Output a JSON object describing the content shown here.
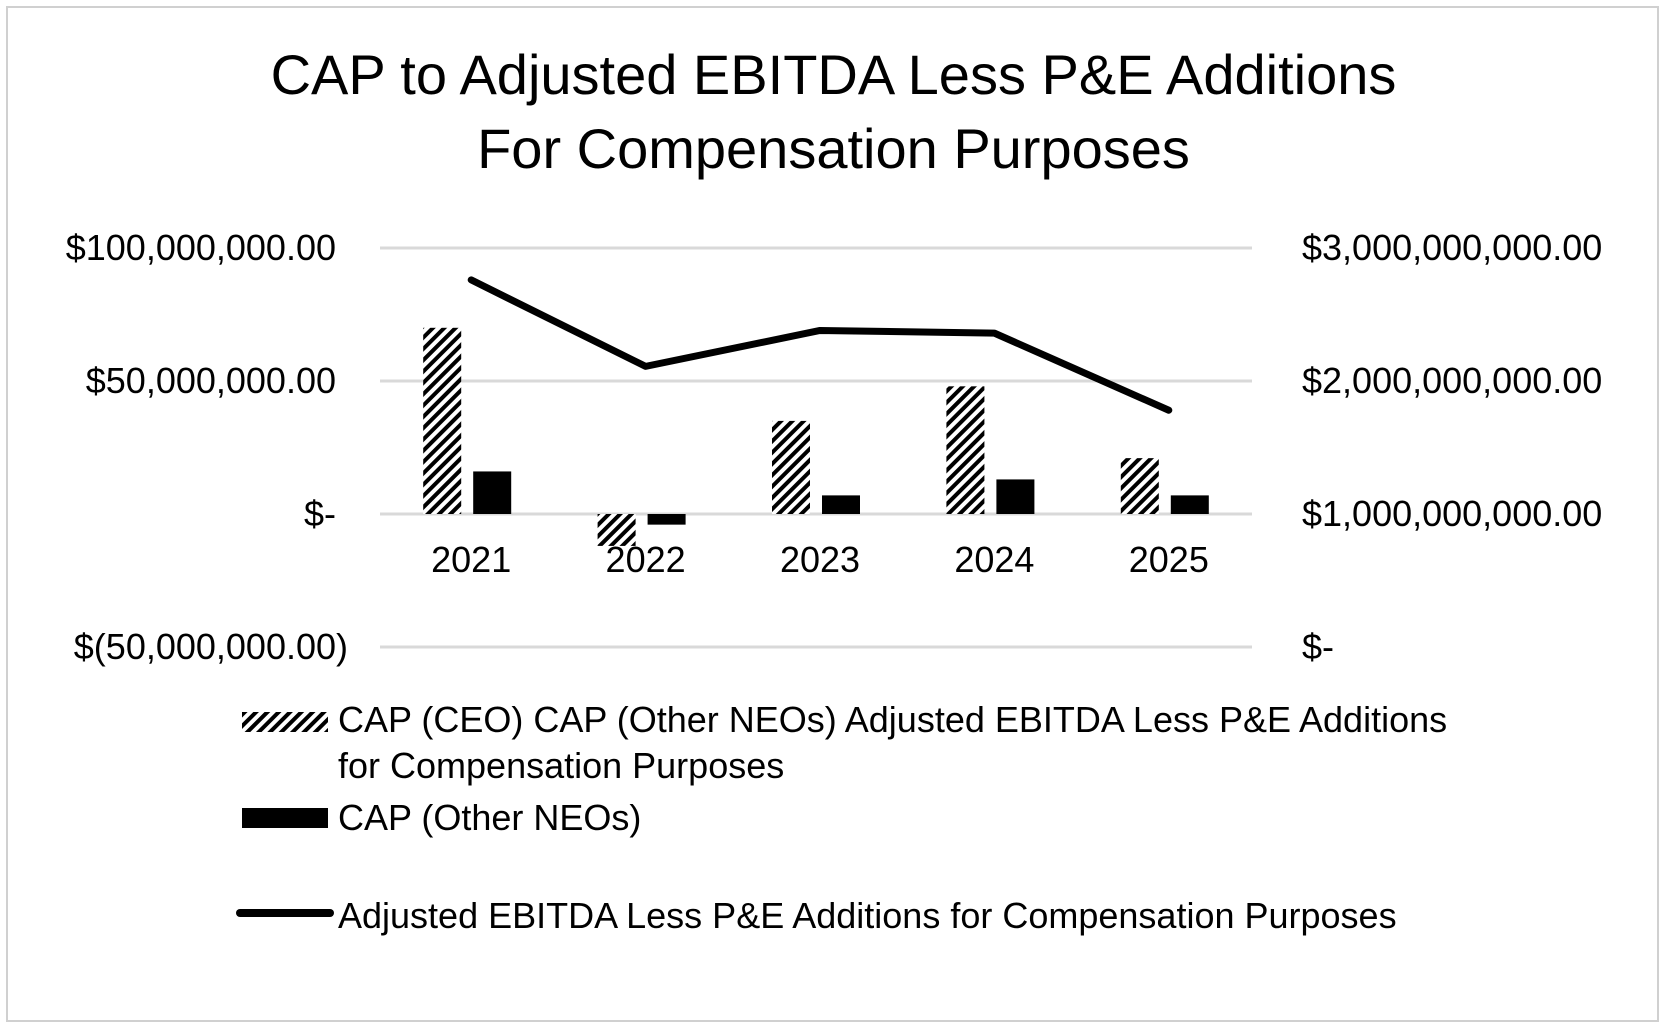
{
  "chart_data": {
    "type": "bar",
    "title_line1": "CAP to Adjusted EBITDA Less P&E Additions",
    "title_line2": "For Compensation Purposes",
    "categories": [
      "2021",
      "2022",
      "2023",
      "2024",
      "2025"
    ],
    "series": [
      {
        "name": "CAP (CEO) CAP (Other NEOs) Adjusted EBITDA Less P&E Additions for Compensation Purposes",
        "type": "bar",
        "axis": "left",
        "pattern": "diagonal-hatch",
        "values": [
          70000000,
          -12000000,
          35000000,
          48000000,
          21000000
        ]
      },
      {
        "name": "CAP (Other NEOs)",
        "type": "bar",
        "axis": "left",
        "color": "#000000",
        "values": [
          16000000,
          -4000000,
          7000000,
          13000000,
          7000000
        ]
      },
      {
        "name": "Adjusted EBITDA Less P&E Additions for Compensation Purposes",
        "type": "line",
        "axis": "right",
        "color": "#000000",
        "values": [
          2760000000,
          2110000000,
          2380000000,
          2360000000,
          1780000000
        ]
      }
    ],
    "left_axis": {
      "ylim": [
        -50000000,
        100000000
      ],
      "ticks": [
        100000000,
        50000000,
        0,
        -50000000
      ],
      "tick_labels": [
        "$100,000,000.00",
        "$50,000,000.00",
        "$-",
        "$(50,000,000.00)"
      ]
    },
    "right_axis": {
      "ylim": [
        0,
        3000000000
      ],
      "ticks": [
        3000000000,
        2000000000,
        1000000000,
        0
      ],
      "tick_labels": [
        "$3,000,000,000.00",
        "$2,000,000,000.00",
        "$1,000,000,000.00",
        "$-"
      ]
    },
    "grid": true,
    "legend_position": "bottom",
    "colors": {
      "gridline": "#d9d9d9",
      "bar": "#000000",
      "line": "#000000"
    }
  }
}
